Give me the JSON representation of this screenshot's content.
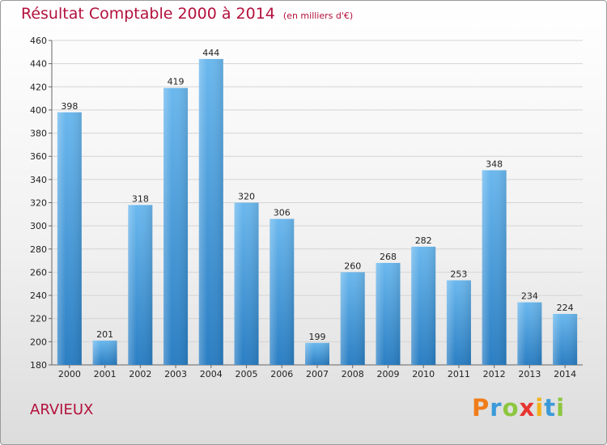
{
  "header": {
    "title": "Résultat Comptable 2000 à 2014",
    "subtitle": "(en milliers d'€)"
  },
  "footer": {
    "commune": "ARVIEUX",
    "brand": "Proxiti",
    "brand_colors": [
      "#f07d1a",
      "#3a9ad9",
      "#8cc63f",
      "#e8342f",
      "#f2b21b",
      "#3a9ad9",
      "#8cc63f"
    ]
  },
  "colors": {
    "title": "#b4103c",
    "bar_light": "#62b1ea",
    "bar_dark": "#2a7fc4"
  },
  "chart_data": {
    "type": "bar",
    "title": "Résultat Comptable 2000 à 2014",
    "xlabel": "",
    "ylabel": "",
    "categories": [
      "2000",
      "2001",
      "2002",
      "2003",
      "2004",
      "2005",
      "2006",
      "2007",
      "2008",
      "2009",
      "2010",
      "2011",
      "2012",
      "2013",
      "2014"
    ],
    "values": [
      398,
      201,
      318,
      419,
      444,
      320,
      306,
      199,
      260,
      268,
      282,
      253,
      348,
      234,
      224
    ],
    "ylim": [
      180,
      460
    ],
    "yticks": [
      180,
      200,
      220,
      240,
      260,
      280,
      300,
      320,
      340,
      360,
      380,
      400,
      420,
      440,
      460
    ],
    "grid": true
  }
}
